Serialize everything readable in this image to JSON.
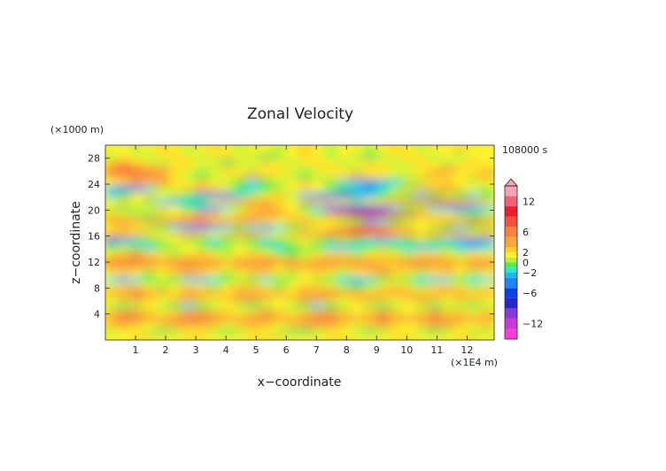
{
  "chart_data": {
    "type": "heatmap",
    "title": "Zonal Velocity",
    "xlabel": "x−coordinate",
    "ylabel": "z−coordinate",
    "x_units": "(×1E4 m)",
    "y_units": "(×1000 m)",
    "time_label": "108000 s",
    "xlim": [
      0,
      12.9
    ],
    "ylim": [
      0,
      30
    ],
    "x_ticks": [
      1,
      2,
      3,
      4,
      5,
      6,
      7,
      8,
      9,
      10,
      11,
      12
    ],
    "y_ticks": [
      4,
      8,
      12,
      16,
      20,
      24,
      28
    ],
    "grid": false,
    "colorbar": {
      "placement": "right",
      "range": [
        -15,
        15
      ],
      "tick_values": [
        12,
        6,
        2,
        0,
        -2,
        -6,
        -12
      ],
      "tick_labels": [
        "12",
        "6",
        "2",
        "0",
        "−2",
        "−6",
        "−12"
      ],
      "bands": [
        {
          "from": -15,
          "to": -13,
          "color": "#ff3fcf"
        },
        {
          "from": -13,
          "to": -11,
          "color": "#c93ad9"
        },
        {
          "from": -11,
          "to": -9,
          "color": "#8a3ad9"
        },
        {
          "from": -9,
          "to": -7,
          "color": "#2a27c8"
        },
        {
          "from": -7,
          "to": -5,
          "color": "#0b3fe8"
        },
        {
          "from": -5,
          "to": -3,
          "color": "#1d86f2"
        },
        {
          "from": -3,
          "to": -2,
          "color": "#1fb6ec"
        },
        {
          "from": -2,
          "to": -1,
          "color": "#2ee0e0"
        },
        {
          "from": -1,
          "to": 0,
          "color": "#52e85a"
        },
        {
          "from": 0,
          "to": 1,
          "color": "#b4f23c"
        },
        {
          "from": 1,
          "to": 2,
          "color": "#fbf32d"
        },
        {
          "from": 2,
          "to": 3,
          "color": "#ffd12a"
        },
        {
          "from": 3,
          "to": 5,
          "color": "#fba53a"
        },
        {
          "from": 5,
          "to": 7,
          "color": "#f5823e"
        },
        {
          "from": 7,
          "to": 9,
          "color": "#f4533a"
        },
        {
          "from": 9,
          "to": 11,
          "color": "#ee1d2a"
        },
        {
          "from": 11,
          "to": 13,
          "color": "#f2637a"
        },
        {
          "from": 13,
          "to": 15,
          "color": "#f8a3b6"
        }
      ]
    },
    "field": {
      "x_start": 0.0,
      "x_step": 0.43,
      "nx": 30,
      "z_start": 0.5,
      "z_step": 1.0,
      "nz": 30,
      "rows_bottom_to_top": [
        [
          1,
          1,
          2,
          2,
          1,
          1,
          2,
          2,
          1,
          1,
          1,
          2,
          2,
          2,
          1,
          1,
          1,
          2,
          2,
          1,
          1,
          1,
          2,
          2,
          1,
          1,
          1,
          2,
          2,
          1
        ],
        [
          0,
          1,
          1,
          0,
          -1,
          0,
          1,
          1,
          0,
          -1,
          0,
          1,
          1,
          0,
          -1,
          -1,
          0,
          1,
          1,
          0,
          -1,
          0,
          1,
          1,
          0,
          -1,
          0,
          1,
          0,
          0
        ],
        [
          2,
          3,
          2,
          1,
          2,
          3,
          4,
          3,
          2,
          1,
          2,
          3,
          2,
          1,
          2,
          3,
          4,
          3,
          2,
          1,
          2,
          3,
          2,
          1,
          2,
          3,
          3,
          2,
          1,
          2
        ],
        [
          4,
          5,
          5,
          4,
          3,
          4,
          5,
          6,
          5,
          4,
          3,
          4,
          5,
          4,
          3,
          4,
          5,
          5,
          4,
          3,
          4,
          5,
          4,
          3,
          4,
          5,
          4,
          3,
          4,
          4
        ],
        [
          2,
          3,
          3,
          2,
          1,
          2,
          3,
          3,
          2,
          2,
          1,
          2,
          3,
          2,
          1,
          2,
          3,
          3,
          2,
          1,
          2,
          3,
          2,
          1,
          2,
          3,
          2,
          2,
          1,
          2
        ],
        [
          0,
          -1,
          0,
          1,
          0,
          -1,
          -2,
          -1,
          0,
          1,
          0,
          -1,
          0,
          1,
          0,
          -1,
          -2,
          -1,
          0,
          1,
          0,
          -1,
          0,
          1,
          0,
          -1,
          0,
          0,
          -1,
          0
        ],
        [
          1,
          2,
          3,
          2,
          1,
          2,
          3,
          2,
          1,
          2,
          3,
          3,
          2,
          1,
          2,
          3,
          3,
          2,
          1,
          2,
          3,
          2,
          1,
          2,
          3,
          2,
          1,
          2,
          2,
          1
        ],
        [
          3,
          4,
          5,
          4,
          3,
          2,
          3,
          4,
          3,
          2,
          3,
          4,
          4,
          3,
          2,
          3,
          4,
          5,
          4,
          3,
          2,
          3,
          4,
          3,
          2,
          3,
          4,
          3,
          2,
          3
        ],
        [
          1,
          2,
          2,
          1,
          0,
          1,
          2,
          1,
          0,
          1,
          2,
          2,
          1,
          0,
          1,
          2,
          2,
          1,
          0,
          -1,
          0,
          1,
          2,
          1,
          0,
          1,
          2,
          1,
          0,
          1
        ],
        [
          -2,
          -3,
          -2,
          -1,
          0,
          -1,
          -2,
          -3,
          -2,
          -1,
          0,
          -1,
          -2,
          -1,
          0,
          1,
          0,
          -1,
          -2,
          -3,
          -2,
          -1,
          0,
          -1,
          -2,
          -3,
          -2,
          -1,
          -2,
          -2
        ],
        [
          1,
          2,
          1,
          0,
          1,
          2,
          3,
          2,
          1,
          0,
          1,
          2,
          2,
          1,
          0,
          1,
          2,
          1,
          0,
          1,
          2,
          3,
          2,
          1,
          0,
          1,
          2,
          1,
          0,
          1
        ],
        [
          3,
          4,
          4,
          3,
          2,
          3,
          4,
          4,
          3,
          2,
          3,
          4,
          3,
          2,
          3,
          4,
          4,
          3,
          2,
          3,
          4,
          3,
          2,
          3,
          4,
          4,
          3,
          2,
          3,
          3
        ],
        [
          5,
          6,
          5,
          4,
          3,
          4,
          5,
          4,
          3,
          2,
          3,
          4,
          5,
          4,
          3,
          2,
          3,
          4,
          5,
          4,
          3,
          2,
          3,
          4,
          5,
          4,
          3,
          2,
          3,
          4
        ],
        [
          1,
          2,
          3,
          2,
          1,
          0,
          1,
          2,
          1,
          0,
          1,
          2,
          1,
          0,
          -1,
          0,
          1,
          2,
          1,
          0,
          1,
          2,
          1,
          0,
          1,
          2,
          1,
          0,
          1,
          1
        ],
        [
          -1,
          0,
          -1,
          -2,
          -1,
          0,
          1,
          0,
          -1,
          0,
          1,
          0,
          -1,
          -2,
          -1,
          0,
          -1,
          -2,
          -3,
          -2,
          -1,
          0,
          -1,
          -2,
          -3,
          -2,
          -1,
          -2,
          -3,
          -2
        ],
        [
          -4,
          -3,
          -2,
          -1,
          0,
          1,
          0,
          -1,
          -2,
          -1,
          0,
          -1,
          -2,
          -1,
          0,
          1,
          0,
          -1,
          0,
          -1,
          -2,
          -3,
          -2,
          -1,
          0,
          -1,
          -2,
          -3,
          -4,
          -3
        ],
        [
          3,
          4,
          3,
          2,
          1,
          2,
          3,
          2,
          1,
          2,
          3,
          3,
          2,
          1,
          2,
          3,
          4,
          5,
          6,
          7,
          6,
          5,
          4,
          3,
          2,
          3,
          4,
          3,
          2,
          3
        ],
        [
          1,
          2,
          1,
          0,
          -1,
          -2,
          -3,
          -4,
          -3,
          -2,
          -1,
          -2,
          -3,
          -2,
          -1,
          0,
          1,
          2,
          4,
          6,
          7,
          6,
          4,
          2,
          1,
          0,
          -1,
          -2,
          -1,
          0
        ],
        [
          4,
          5,
          4,
          3,
          4,
          5,
          6,
          5,
          4,
          3,
          4,
          3,
          2,
          1,
          2,
          3,
          2,
          1,
          0,
          -1,
          -3,
          -2,
          -1,
          0,
          1,
          2,
          3,
          4,
          5,
          4
        ],
        [
          2,
          1,
          0,
          -1,
          0,
          1,
          2,
          3,
          2,
          1,
          2,
          3,
          4,
          3,
          2,
          1,
          0,
          3,
          6,
          9,
          10,
          9,
          7,
          5,
          3,
          2,
          1,
          0,
          -1,
          0
        ],
        [
          0,
          -1,
          0,
          1,
          2,
          1,
          -1,
          -3,
          -4,
          -2,
          0,
          2,
          3,
          2,
          1,
          -1,
          -2,
          -4,
          -6,
          -7,
          -6,
          -4,
          -2,
          -1,
          0,
          -2,
          -3,
          -4,
          -3,
          -2
        ],
        [
          1,
          2,
          1,
          -1,
          -2,
          -3,
          -2,
          -1,
          1,
          2,
          3,
          4,
          3,
          2,
          1,
          3,
          4,
          2,
          1,
          0,
          1,
          2,
          3,
          4,
          6,
          7,
          6,
          4,
          3,
          2
        ],
        [
          -2,
          -1,
          1,
          2,
          1,
          0,
          -1,
          -3,
          -5,
          -4,
          -2,
          0,
          1,
          2,
          0,
          -2,
          -3,
          -5,
          -6,
          -5,
          -3,
          -1,
          0,
          -1,
          -2,
          -1,
          0,
          -1,
          -2,
          -1
        ],
        [
          -3,
          -5,
          -4,
          -2,
          0,
          1,
          2,
          3,
          2,
          1,
          -1,
          -2,
          -1,
          0,
          1,
          2,
          1,
          0,
          -1,
          -2,
          -3,
          -2,
          0,
          2,
          3,
          4,
          3,
          2,
          1,
          0
        ],
        [
          1,
          2,
          3,
          4,
          3,
          2,
          1,
          2,
          1,
          0,
          -1,
          -2,
          -1,
          0,
          1,
          2,
          1,
          -1,
          -2,
          -3,
          -4,
          -3,
          -2,
          -1,
          0,
          1,
          2,
          1,
          0,
          1
        ],
        [
          3,
          4,
          5,
          4,
          3,
          1,
          0,
          -1,
          0,
          1,
          2,
          3,
          2,
          1,
          0,
          -1,
          0,
          1,
          2,
          3,
          2,
          1,
          0,
          1,
          2,
          3,
          2,
          1,
          2,
          3
        ],
        [
          6,
          7,
          6,
          5,
          4,
          2,
          1,
          0,
          1,
          2,
          1,
          0,
          1,
          2,
          1,
          0,
          1,
          2,
          1,
          0,
          1,
          2,
          1,
          0,
          1,
          2,
          3,
          2,
          1,
          2
        ],
        [
          2,
          3,
          2,
          1,
          0,
          1,
          2,
          1,
          0,
          -1,
          0,
          1,
          2,
          1,
          0,
          1,
          2,
          1,
          0,
          1,
          2,
          1,
          0,
          1,
          2,
          1,
          0,
          1,
          2,
          1
        ],
        [
          0,
          1,
          1,
          0,
          1,
          2,
          1,
          0,
          1,
          2,
          1,
          0,
          -1,
          0,
          1,
          2,
          1,
          0,
          1,
          0,
          -1,
          0,
          1,
          2,
          1,
          0,
          1,
          0,
          1,
          1
        ],
        [
          1,
          1,
          0,
          1,
          2,
          1,
          0,
          1,
          2,
          1,
          0,
          1,
          1,
          0,
          1,
          2,
          1,
          0,
          1,
          1,
          0,
          1,
          2,
          1,
          0,
          1,
          1,
          2,
          1,
          1
        ]
      ]
    }
  }
}
